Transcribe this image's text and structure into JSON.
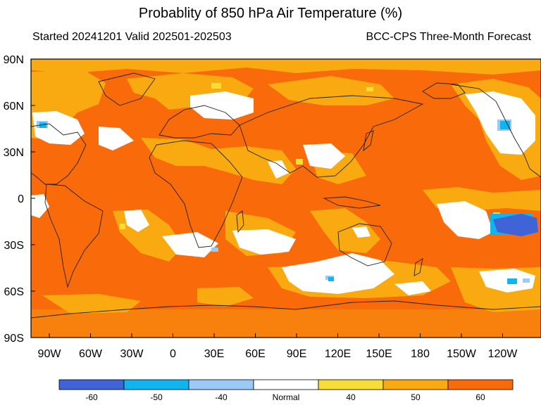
{
  "title": "Probablity of 850 hPa Air Temperature (%)",
  "subtitle_left": "Started 20241201  Valid 202501-202503",
  "subtitle_right": "BCC-CPS Three-Month Forecast",
  "lat_labels": [
    "90N",
    "60N",
    "30N",
    "0",
    "30S",
    "60S",
    "90S"
  ],
  "lon_labels": [
    "90W",
    "60W",
    "30W",
    "0",
    "30E",
    "60E",
    "90E",
    "120E",
    "150E",
    "180",
    "150W",
    "120W"
  ],
  "colorbar": {
    "labels": [
      "-60",
      "-50",
      "-40",
      "Normal",
      "40",
      "50",
      "60"
    ],
    "colors": [
      "#3e64d8",
      "#10b4ee",
      "#9ccaf8",
      "#ffffff",
      "#f8dc38",
      "#f8aa10",
      "#f86a0a"
    ]
  },
  "colors": {
    "above_60": "#f86a0a",
    "above_50": "#f8aa10",
    "above_40": "#f8dc38",
    "normal": "#ffffff",
    "below_40": "#9ccaf8",
    "below_50": "#10b4ee",
    "below_60": "#3e64d8"
  }
}
